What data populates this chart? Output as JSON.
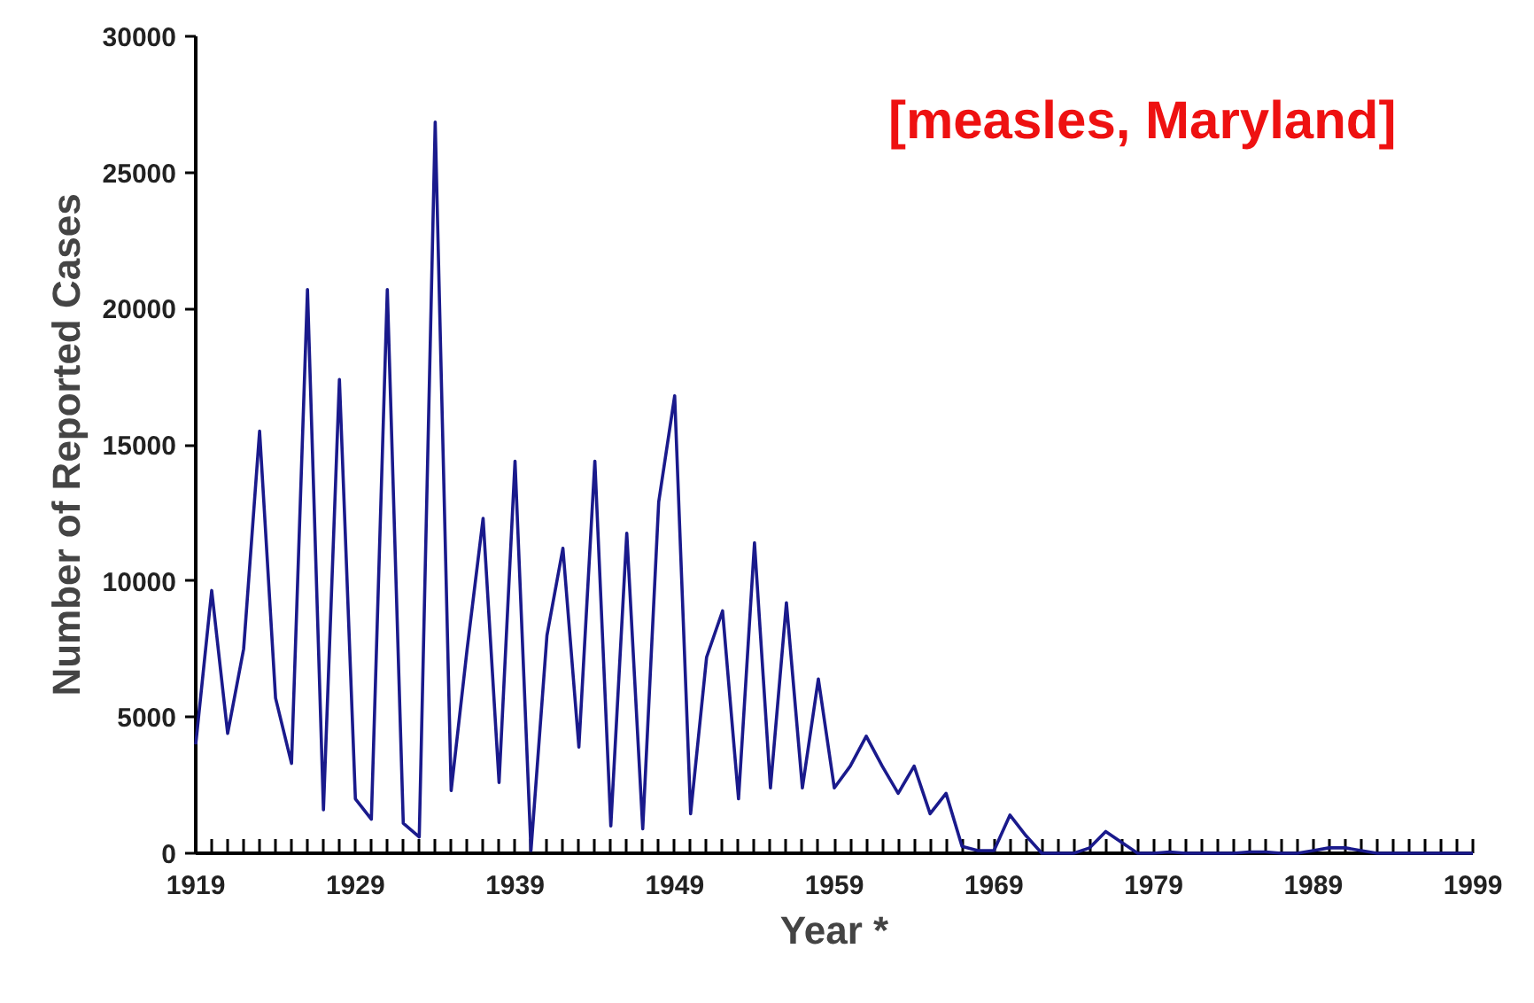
{
  "chart_data": {
    "type": "line",
    "xlabel": "Year *",
    "ylabel": "Number of Reported Cases",
    "annotations": [
      "[measles, Maryland]"
    ],
    "x": [
      1919,
      1920,
      1921,
      1922,
      1923,
      1924,
      1925,
      1926,
      1927,
      1928,
      1929,
      1930,
      1931,
      1932,
      1933,
      1934,
      1935,
      1936,
      1937,
      1938,
      1939,
      1940,
      1941,
      1942,
      1943,
      1944,
      1945,
      1946,
      1947,
      1948,
      1949,
      1950,
      1951,
      1952,
      1953,
      1954,
      1955,
      1956,
      1957,
      1958,
      1959,
      1960,
      1961,
      1962,
      1963,
      1964,
      1965,
      1966,
      1967,
      1968,
      1969,
      1970,
      1971,
      1972,
      1973,
      1974,
      1975,
      1976,
      1977,
      1978,
      1979,
      1980,
      1981,
      1982,
      1983,
      1984,
      1985,
      1986,
      1987,
      1988,
      1989,
      1990,
      1991,
      1992,
      1993,
      1994,
      1995,
      1996,
      1997,
      1998,
      1999
    ],
    "series": [
      {
        "color": "#1a1a8c",
        "values": [
          4000,
          9650,
          4400,
          7500,
          15500,
          5700,
          3300,
          20700,
          1600,
          17400,
          2000,
          1250,
          20700,
          1100,
          600,
          26850,
          2300,
          7500,
          12300,
          2600,
          14400,
          100,
          8000,
          11200,
          3900,
          14400,
          1000,
          11750,
          900,
          12900,
          16800,
          1450,
          7200,
          8900,
          2000,
          11400,
          2400,
          9200,
          2400,
          6400,
          2400,
          3200,
          4300,
          3200,
          2200,
          3200,
          1450,
          2200,
          250,
          100,
          100,
          1400,
          650,
          0,
          0,
          0,
          200,
          800,
          400,
          0,
          0,
          50,
          0,
          0,
          0,
          0,
          50,
          50,
          0,
          0,
          100,
          200,
          200,
          100,
          0,
          0,
          0,
          0,
          0,
          0,
          0
        ]
      }
    ],
    "xlim": [
      1919,
      1999
    ],
    "xticks": [
      1919,
      {
        "value": 1920,
        "label": null
      },
      {
        "value": 1921,
        "label": null
      },
      {
        "value": 1922,
        "label": null
      },
      {
        "value": 1923,
        "label": null
      },
      {
        "value": 1924,
        "label": null
      },
      {
        "value": 1925,
        "label": null
      },
      {
        "value": 1926,
        "label": null
      },
      {
        "value": 1927,
        "label": null
      },
      {
        "value": 1928,
        "label": null
      },
      1929,
      {
        "value": 1930,
        "label": null
      },
      {
        "value": 1931,
        "label": null
      },
      {
        "value": 1932,
        "label": null
      },
      {
        "value": 1933,
        "label": null
      },
      {
        "value": 1934,
        "label": null
      },
      {
        "value": 1935,
        "label": null
      },
      {
        "value": 1936,
        "label": null
      },
      {
        "value": 1937,
        "label": null
      },
      {
        "value": 1938,
        "label": null
      },
      1939,
      {
        "value": 1940,
        "label": null
      },
      {
        "value": 1941,
        "label": null
      },
      {
        "value": 1942,
        "label": null
      },
      {
        "value": 1943,
        "label": null
      },
      {
        "value": 1944,
        "label": null
      },
      {
        "value": 1945,
        "label": null
      },
      {
        "value": 1946,
        "label": null
      },
      {
        "value": 1947,
        "label": null
      },
      {
        "value": 1948,
        "label": null
      },
      1949,
      {
        "value": 1950,
        "label": null
      },
      {
        "value": 1951,
        "label": null
      },
      {
        "value": 1952,
        "label": null
      },
      {
        "value": 1953,
        "label": null
      },
      {
        "value": 1954,
        "label": null
      },
      {
        "value": 1955,
        "label": null
      },
      {
        "value": 1956,
        "label": null
      },
      {
        "value": 1957,
        "label": null
      },
      {
        "value": 1958,
        "label": null
      },
      1959,
      {
        "value": 1960,
        "label": null
      },
      {
        "value": 1961,
        "label": null
      },
      {
        "value": 1962,
        "label": null
      },
      {
        "value": 1963,
        "label": null
      },
      {
        "value": 1964,
        "label": null
      },
      {
        "value": 1965,
        "label": null
      },
      {
        "value": 1966,
        "label": null
      },
      {
        "value": 1967,
        "label": null
      },
      {
        "value": 1968,
        "label": null
      },
      1969,
      {
        "value": 1970,
        "label": null
      },
      {
        "value": 1971,
        "label": null
      },
      {
        "value": 1972,
        "label": null
      },
      {
        "value": 1973,
        "label": null
      },
      {
        "value": 1974,
        "label": null
      },
      {
        "value": 1975,
        "label": null
      },
      {
        "value": 1976,
        "label": null
      },
      {
        "value": 1977,
        "label": null
      },
      {
        "value": 1978,
        "label": null
      },
      1979,
      {
        "value": 1980,
        "label": null
      },
      {
        "value": 1981,
        "label": null
      },
      {
        "value": 1982,
        "label": null
      },
      {
        "value": 1983,
        "label": null
      },
      {
        "value": 1984,
        "label": null
      },
      {
        "value": 1985,
        "label": null
      },
      {
        "value": 1986,
        "label": null
      },
      {
        "value": 1987,
        "label": null
      },
      {
        "value": 1988,
        "label": null
      },
      1989,
      {
        "value": 1990,
        "label": null
      },
      {
        "value": 1991,
        "label": null
      },
      {
        "value": 1992,
        "label": null
      },
      {
        "value": 1993,
        "label": null
      },
      {
        "value": 1994,
        "label": null
      },
      {
        "value": 1995,
        "label": null
      },
      {
        "value": 1996,
        "label": null
      },
      {
        "value": 1997,
        "label": null
      },
      {
        "value": 1998,
        "label": null
      },
      1999
    ],
    "ylim": [
      0,
      30000
    ],
    "yticks": [
      0,
      5000,
      10000,
      15000,
      20000,
      25000,
      30000
    ],
    "grid": false,
    "marker": "none",
    "line_style": "solid"
  }
}
